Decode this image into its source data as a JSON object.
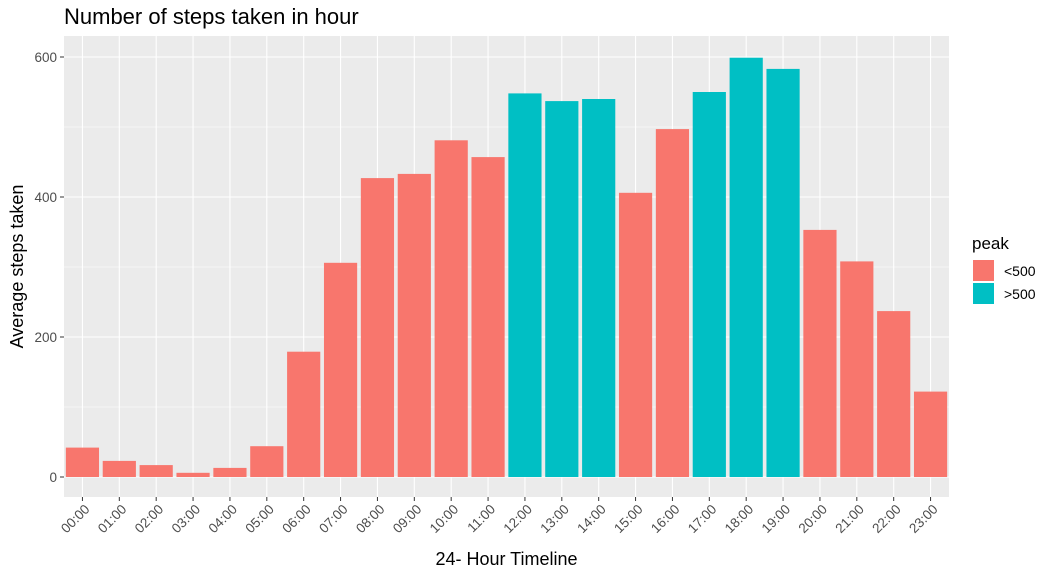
{
  "chart_data": {
    "type": "bar",
    "title": "Number of steps taken in hour",
    "xlabel": "24- Hour Timeline",
    "ylabel": "Average steps taken",
    "categories": [
      "00:00",
      "01:00",
      "02:00",
      "03:00",
      "04:00",
      "05:00",
      "06:00",
      "07:00",
      "08:00",
      "09:00",
      "10:00",
      "11:00",
      "12:00",
      "13:00",
      "14:00",
      "15:00",
      "16:00",
      "17:00",
      "18:00",
      "19:00",
      "20:00",
      "21:00",
      "22:00",
      "23:00"
    ],
    "values": [
      42,
      23,
      17,
      6,
      13,
      44,
      179,
      306,
      427,
      433,
      481,
      457,
      548,
      537,
      540,
      406,
      497,
      550,
      599,
      583,
      353,
      308,
      237,
      122
    ],
    "group": [
      "<500",
      "<500",
      "<500",
      "<500",
      "<500",
      "<500",
      "<500",
      "<500",
      "<500",
      "<500",
      "<500",
      "<500",
      ">500",
      ">500",
      ">500",
      "<500",
      "<500",
      ">500",
      ">500",
      ">500",
      "<500",
      "<500",
      "<500",
      "<500"
    ],
    "ylim": [
      0,
      628
    ],
    "yticks": [
      0,
      200,
      400,
      600
    ],
    "grid": true,
    "legend": {
      "title": "peak",
      "position": "right",
      "items": [
        {
          "label": "<500",
          "color": "#F8766D"
        },
        {
          "label": ">500",
          "color": "#00BFC4"
        }
      ]
    },
    "colors": {
      "<500": "#F8766D",
      ">500": "#00BFC4"
    },
    "panel_background": "#EBEBEB",
    "grid_color": "#FFFFFF"
  }
}
